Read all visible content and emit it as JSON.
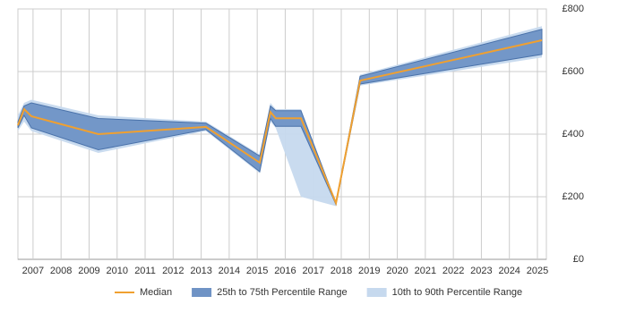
{
  "chart_data": {
    "type": "band-line",
    "x": [
      2006.46,
      2006.68,
      2006.94,
      2009.33,
      2013.17,
      2015.09,
      2015.47,
      2015.66,
      2016.56,
      2017.81,
      2018.67,
      2025.16
    ],
    "series": [
      {
        "name": "10th to 90th Percentile Range",
        "color": "#c6d9ee",
        "kind": "band",
        "lower": [
          410,
          440,
          410,
          340,
          410,
          275,
          440,
          420,
          200,
          170,
          555,
          645
        ],
        "upper": [
          460,
          500,
          510,
          460,
          440,
          335,
          500,
          480,
          480,
          185,
          590,
          745
        ]
      },
      {
        "name": "25th to 75th Percentile Range",
        "color": "#6f93c5",
        "kind": "band",
        "lower": [
          420,
          460,
          420,
          350,
          415,
          280,
          450,
          425,
          425,
          175,
          560,
          655
        ],
        "upper": [
          440,
          490,
          500,
          450,
          435,
          330,
          490,
          475,
          475,
          180,
          585,
          735
        ]
      },
      {
        "name": "Median",
        "color": "#f0a030",
        "kind": "line",
        "values": [
          428,
          480,
          457,
          400,
          423,
          309,
          471,
          451,
          451,
          180,
          571,
          700
        ]
      }
    ],
    "xlim": [
      2006.46,
      2025.32
    ],
    "xticks": [
      2007,
      2008,
      2009,
      2010,
      2011,
      2012,
      2013,
      2014,
      2015,
      2016,
      2017,
      2018,
      2019,
      2020,
      2021,
      2022,
      2023,
      2024,
      2025
    ],
    "ylim": [
      0,
      800
    ],
    "yticks": [
      {
        "value": 0,
        "label": "£0"
      },
      {
        "value": 200,
        "label": "£200"
      },
      {
        "value": 400,
        "label": "£400"
      },
      {
        "value": 600,
        "label": "£600"
      },
      {
        "value": 800,
        "label": "£800"
      }
    ],
    "grid": true,
    "legend": "bottom"
  }
}
